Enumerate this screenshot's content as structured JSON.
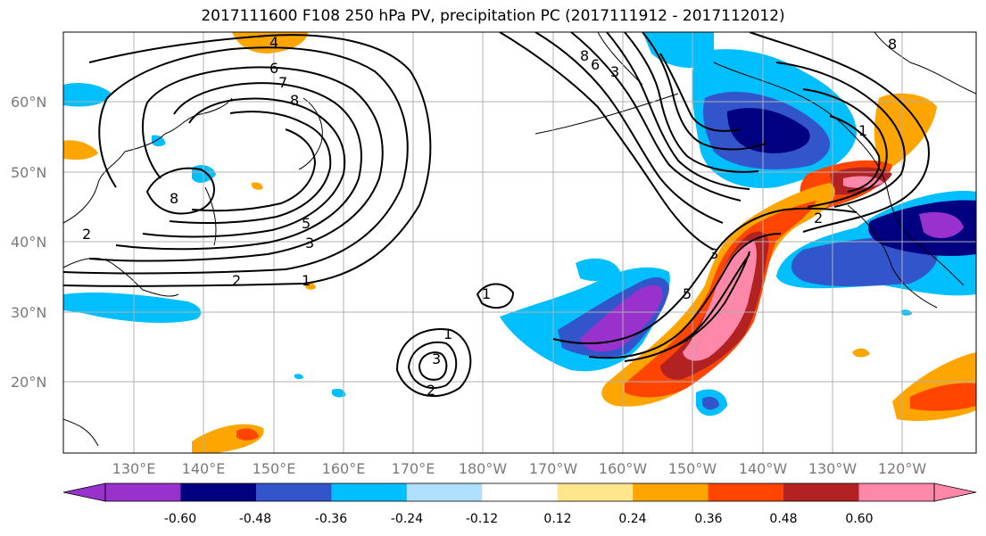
{
  "title": "2017111600 F108 250 hPa PV, precipitation PC (2017111912 - 2017112012)",
  "map": {
    "lat_labels": [
      "60°N",
      "50°N",
      "40°N",
      "30°N",
      "20°N"
    ],
    "lon_labels": [
      "130°E",
      "140°E",
      "150°E",
      "160°E",
      "170°E",
      "180°W",
      "170°W",
      "160°W",
      "150°W",
      "140°W",
      "130°W",
      "120°W"
    ],
    "pv_contour_labels": [
      "4",
      "6",
      "7",
      "8",
      "8",
      "5",
      "3",
      "2",
      "1",
      "1",
      "1",
      "2",
      "3",
      "3",
      "5",
      "8",
      "1",
      "2",
      "8",
      "6",
      "3",
      "2"
    ],
    "region": "North Pacific"
  },
  "colorbar": {
    "ticks": [
      "-0.60",
      "-0.48",
      "-0.36",
      "-0.24",
      "-0.12",
      "0.12",
      "0.24",
      "0.36",
      "0.48",
      "0.60"
    ],
    "colors": [
      "#9932CC",
      "#000080",
      "#3355CC",
      "#00BFFF",
      "#B0E0FF",
      "#FFFFFF",
      "#FFE68A",
      "#FFA500",
      "#FF4500",
      "#B22222",
      "#FF88AA"
    ]
  }
}
